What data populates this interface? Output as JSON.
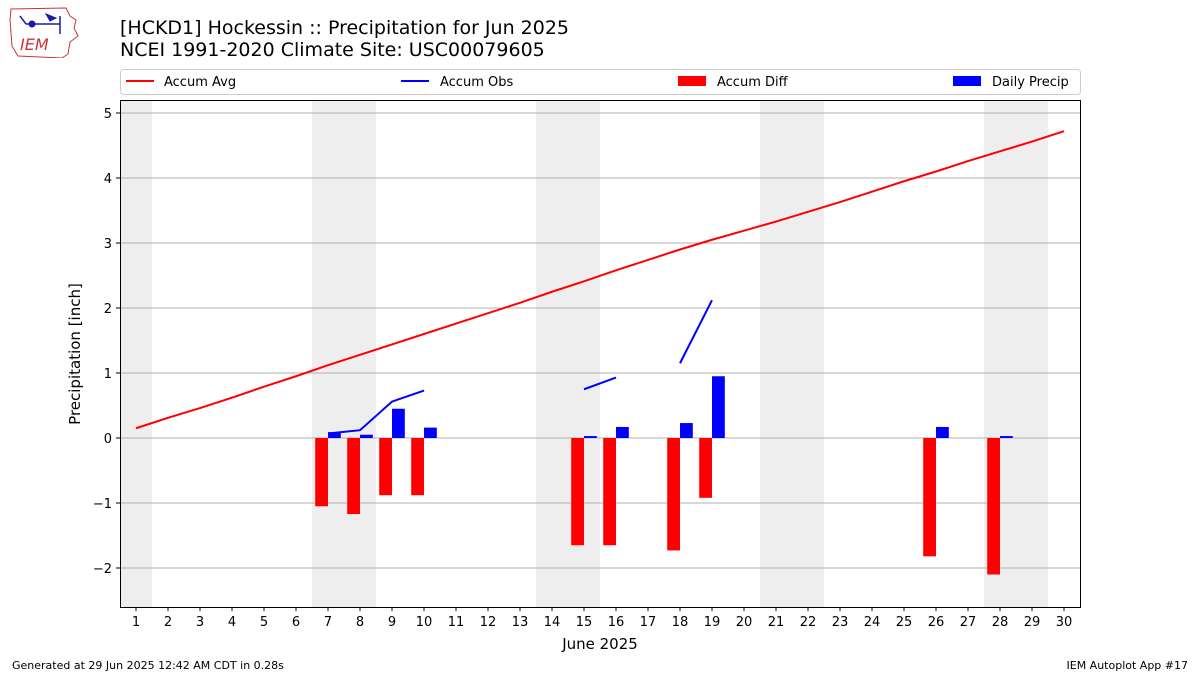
{
  "title_line1": "[HCKD1] Hockessin :: Precipitation for Jun 2025",
  "title_line2": "NCEI 1991-2020 Climate Site: USC00079605",
  "logo_text": "IEM",
  "footer_left": "Generated at 29 Jun 2025 12:42 AM CDT in 0.28s",
  "footer_right": "IEM Autoplot App #17",
  "colors": {
    "accum_avg": "#ff0000",
    "accum_obs": "#0000ff",
    "accum_diff": "#ff0000",
    "daily_precip": "#0000ff",
    "weekend_shade": "#eeeeee",
    "grid": "#b0b0b0"
  },
  "chart_data": {
    "type": "bar",
    "xlabel": "June 2025",
    "ylabel": "Precipitation [inch]",
    "xlim": [
      0.5,
      30.5
    ],
    "ylim": [
      -2.6,
      5.2
    ],
    "yticks": [
      -2,
      -1,
      0,
      1,
      2,
      3,
      4,
      5
    ],
    "ytick_labels": [
      "−2",
      "−1",
      "0",
      "1",
      "2",
      "3",
      "4",
      "5"
    ],
    "xticks": [
      1,
      2,
      3,
      4,
      5,
      6,
      7,
      8,
      9,
      10,
      11,
      12,
      13,
      14,
      15,
      16,
      17,
      18,
      19,
      20,
      21,
      22,
      23,
      24,
      25,
      26,
      27,
      28,
      29,
      30
    ],
    "grid": "horizontal",
    "legend_position": "top",
    "weekend_shaded_days": [
      1,
      7,
      8,
      14,
      15,
      21,
      22,
      28,
      29
    ],
    "series": [
      {
        "name": "Accum Avg",
        "kind": "line",
        "x": [
          1,
          2,
          3,
          4,
          5,
          6,
          7,
          8,
          9,
          10,
          11,
          12,
          13,
          14,
          15,
          16,
          17,
          18,
          19,
          20,
          21,
          22,
          23,
          24,
          25,
          26,
          27,
          28,
          29,
          30
        ],
        "values": [
          0.15,
          0.31,
          0.46,
          0.62,
          0.79,
          0.95,
          1.12,
          1.28,
          1.44,
          1.6,
          1.76,
          1.92,
          2.08,
          2.25,
          2.41,
          2.58,
          2.74,
          2.9,
          3.05,
          3.19,
          3.33,
          3.48,
          3.63,
          3.79,
          3.95,
          4.1,
          4.26,
          4.41,
          4.56,
          4.72
        ]
      },
      {
        "name": "Accum Obs",
        "kind": "line",
        "x": [
          7,
          8,
          9,
          10,
          15,
          16,
          18,
          19
        ],
        "values": [
          0.07,
          0.12,
          0.56,
          0.73,
          0.75,
          0.93,
          1.15,
          2.12
        ],
        "segments": [
          [
            7,
            8,
            9,
            10
          ],
          [
            15,
            16
          ],
          [
            18,
            19
          ]
        ]
      },
      {
        "name": "Accum Diff",
        "kind": "bar",
        "x": [
          7,
          8,
          9,
          10,
          15,
          16,
          18,
          19,
          26,
          28
        ],
        "values": [
          -1.05,
          -1.17,
          -0.88,
          -0.88,
          -1.65,
          -1.65,
          -1.73,
          -0.92,
          -1.82,
          -2.1
        ]
      },
      {
        "name": "Daily Precip",
        "kind": "bar",
        "x": [
          7,
          8,
          9,
          10,
          15,
          16,
          18,
          19,
          26,
          28
        ],
        "values": [
          0.09,
          0.05,
          0.45,
          0.16,
          0.03,
          0.17,
          0.23,
          0.95,
          0.17,
          0.03
        ]
      }
    ]
  }
}
